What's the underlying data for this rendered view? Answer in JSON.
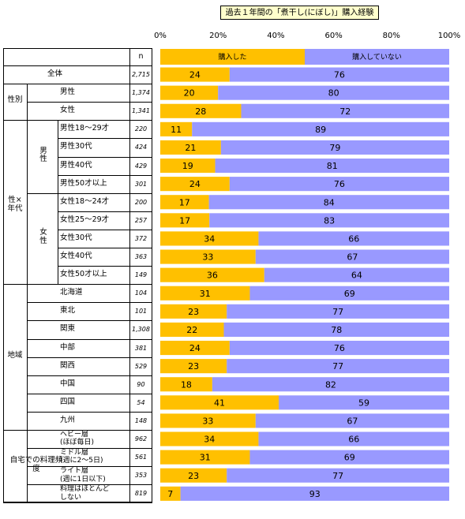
{
  "chart_data": {
    "type": "bar",
    "stacked": true,
    "orientation": "horizontal",
    "title": "過去１年間の「煮干し(にぼし)」購入経験",
    "x_ticks": [
      "0%",
      "20%",
      "40%",
      "60%",
      "80%",
      "100%"
    ],
    "xlim": [
      0,
      100
    ],
    "n_header": "n",
    "colors": {
      "purchased": "#ffc000",
      "not_purchased": "#9999ff"
    },
    "series": [
      {
        "name": "購入した",
        "color": "#ffc000"
      },
      {
        "name": "購入していない",
        "color": "#9999ff"
      }
    ],
    "legend_values": [
      50,
      50
    ],
    "groups": [
      {
        "label": "",
        "sub": [
          {
            "label": "",
            "rows": [
              0
            ]
          }
        ]
      },
      {
        "label": "性別",
        "sub": [
          {
            "label": "",
            "rows": [
              1,
              2
            ]
          }
        ]
      },
      {
        "label": "性×年代",
        "sub": [
          {
            "label": "男性",
            "rows": [
              3,
              4,
              5,
              6
            ]
          },
          {
            "label": "女性",
            "rows": [
              7,
              8,
              9,
              10,
              11
            ]
          }
        ]
      },
      {
        "label": "地域",
        "sub": [
          {
            "label": "",
            "rows": [
              12,
              13,
              14,
              15,
              16,
              17,
              18,
              19
            ]
          }
        ]
      },
      {
        "label": "自宅での料理頻度",
        "sub": [
          {
            "label": "",
            "rows": [
              20,
              21,
              22,
              23
            ]
          }
        ]
      }
    ],
    "rows": [
      {
        "label": "全体",
        "n": "2,715",
        "purchased": 24,
        "not_purchased": 76
      },
      {
        "label": "男性",
        "n": "1,374",
        "purchased": 20,
        "not_purchased": 80
      },
      {
        "label": "女性",
        "n": "1,341",
        "purchased": 28,
        "not_purchased": 72
      },
      {
        "label": "男性18～29才",
        "n": "220",
        "purchased": 11,
        "not_purchased": 89
      },
      {
        "label": "男性30代",
        "n": "424",
        "purchased": 21,
        "not_purchased": 79
      },
      {
        "label": "男性40代",
        "n": "429",
        "purchased": 19,
        "not_purchased": 81
      },
      {
        "label": "男性50才以上",
        "n": "301",
        "purchased": 24,
        "not_purchased": 76
      },
      {
        "label": "女性18～24才",
        "n": "200",
        "purchased": 17,
        "not_purchased": 84
      },
      {
        "label": "女性25～29才",
        "n": "257",
        "purchased": 17,
        "not_purchased": 83
      },
      {
        "label": "女性30代",
        "n": "372",
        "purchased": 34,
        "not_purchased": 66
      },
      {
        "label": "女性40代",
        "n": "363",
        "purchased": 33,
        "not_purchased": 67
      },
      {
        "label": "女性50才以上",
        "n": "149",
        "purchased": 36,
        "not_purchased": 64
      },
      {
        "label": "北海道",
        "n": "104",
        "purchased": 31,
        "not_purchased": 69
      },
      {
        "label": "東北",
        "n": "101",
        "purchased": 23,
        "not_purchased": 77
      },
      {
        "label": "関東",
        "n": "1,308",
        "purchased": 22,
        "not_purchased": 78
      },
      {
        "label": "中部",
        "n": "381",
        "purchased": 24,
        "not_purchased": 76
      },
      {
        "label": "関西",
        "n": "529",
        "purchased": 23,
        "not_purchased": 77
      },
      {
        "label": "中国",
        "n": "90",
        "purchased": 18,
        "not_purchased": 82
      },
      {
        "label": "四国",
        "n": "54",
        "purchased": 41,
        "not_purchased": 59
      },
      {
        "label": "九州",
        "n": "148",
        "purchased": 33,
        "not_purchased": 67
      },
      {
        "label": "ヘビー層\n(ほぼ毎日)",
        "n": "962",
        "purchased": 34,
        "not_purchased": 66
      },
      {
        "label": "ミドル層\n(週に2～5日)",
        "n": "561",
        "purchased": 31,
        "not_purchased": 69
      },
      {
        "label": "ライト層\n(週に1日以下)",
        "n": "353",
        "purchased": 23,
        "not_purchased": 77
      },
      {
        "label": "料理はほとんど\nしない",
        "n": "819",
        "purchased": 7,
        "not_purchased": 93
      }
    ]
  }
}
